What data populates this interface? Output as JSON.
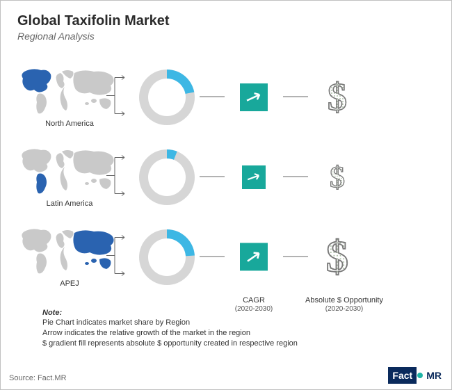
{
  "title": "Global Taxifolin Market",
  "subtitle": "Regional Analysis",
  "colors": {
    "accent": "#3db7e4",
    "map_base": "#c9c9c9",
    "map_highlight": "#2a63b0",
    "donut_bg": "#d6d6d6",
    "cagr_bg": "#18a89b",
    "arrow": "#ffffff",
    "connector": "#666666",
    "dollar_stroke": "#7a7a7a",
    "dollar_fill": "#96b48c"
  },
  "regions": [
    {
      "name": "North America",
      "donut_share_pct": 22,
      "cagr_arrow_deg": 25,
      "cagr_box_scale": 1.0,
      "dollar_scale": 1.0,
      "highlight": "na"
    },
    {
      "name": "Latin America",
      "donut_share_pct": 6,
      "cagr_arrow_deg": 20,
      "cagr_box_scale": 0.85,
      "dollar_scale": 0.78,
      "highlight": "la"
    },
    {
      "name": "APEJ",
      "donut_share_pct": 24,
      "cagr_arrow_deg": 35,
      "cagr_box_scale": 1.12,
      "dollar_scale": 1.15,
      "highlight": "apej"
    }
  ],
  "column_labels": {
    "cagr": "CAGR",
    "cagr_sub": "(2020-2030)",
    "opp": "Absolute $ Opportunity",
    "opp_sub": "(2020-2030)"
  },
  "note": {
    "head": "Note:",
    "l1": "Pie Chart indicates market share by Region",
    "l2": "Arrow indicates the relative growth of the market in the region",
    "l3": "$ gradient fill represents absolute $ opportunity created in respective region"
  },
  "source": "Source: Fact.MR",
  "logo": {
    "part1": "Fact",
    "part2": "MR"
  },
  "donut": {
    "outer_r": 40,
    "inner_r": 27
  },
  "chart": {
    "type": "infographic",
    "background_color": "#ffffff",
    "title_fontsize": 20,
    "subtitle_fontsize": 14,
    "label_fontsize": 11
  }
}
